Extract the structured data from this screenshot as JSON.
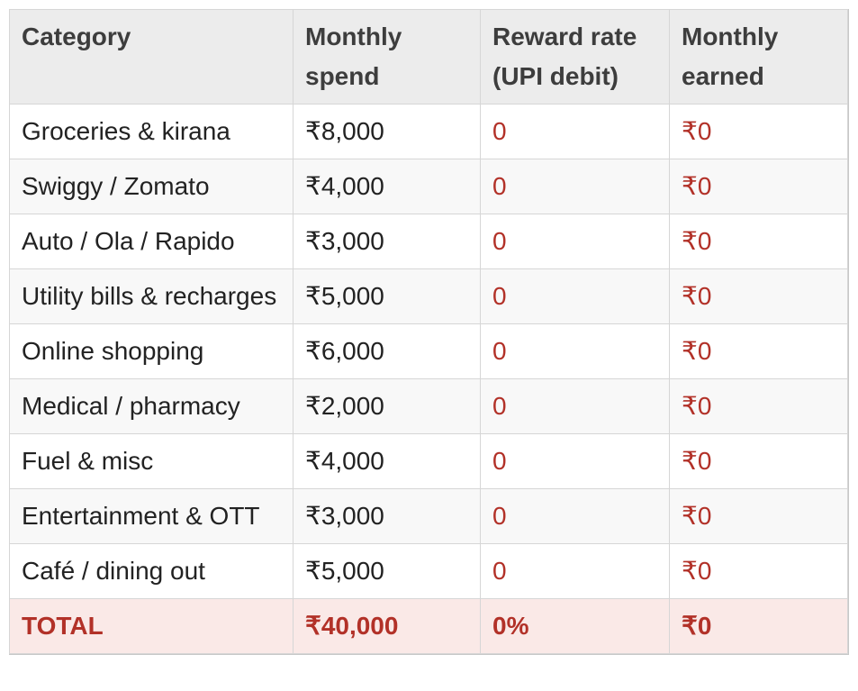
{
  "table": {
    "columns": [
      "Category",
      "Monthly spend",
      "Reward rate (UPI debit)",
      "Monthly earned"
    ],
    "rows": [
      [
        "Groceries & kirana",
        "₹8,000",
        "0",
        "₹0"
      ],
      [
        "Swiggy / Zomato",
        "₹4,000",
        "0",
        "₹0"
      ],
      [
        "Auto / Ola / Rapido",
        "₹3,000",
        "0",
        "₹0"
      ],
      [
        "Utility bills & recharges",
        "₹5,000",
        "0",
        "₹0"
      ],
      [
        "Online shopping",
        "₹6,000",
        "0",
        "₹0"
      ],
      [
        "Medical / pharmacy",
        "₹2,000",
        "0",
        "₹0"
      ],
      [
        "Fuel & misc",
        "₹4,000",
        "0",
        "₹0"
      ],
      [
        "Entertainment & OTT",
        "₹3,000",
        "0",
        "₹0"
      ],
      [
        "Café / dining out",
        "₹5,000",
        "0",
        "₹0"
      ]
    ],
    "total": [
      "TOTAL",
      "₹40,000",
      "0%",
      "₹0"
    ],
    "currency_symbol": "₹"
  },
  "colors": {
    "header_bg": "#ececec",
    "row_bg": "#ffffff",
    "row_alt_bg": "#f8f8f8",
    "total_bg": "#fae9e7",
    "value_red": "#b23128",
    "header_text": "#3d3d3d",
    "body_text": "#222222",
    "border": "#d6d6d6",
    "outer_border": "#c8c8c8"
  }
}
